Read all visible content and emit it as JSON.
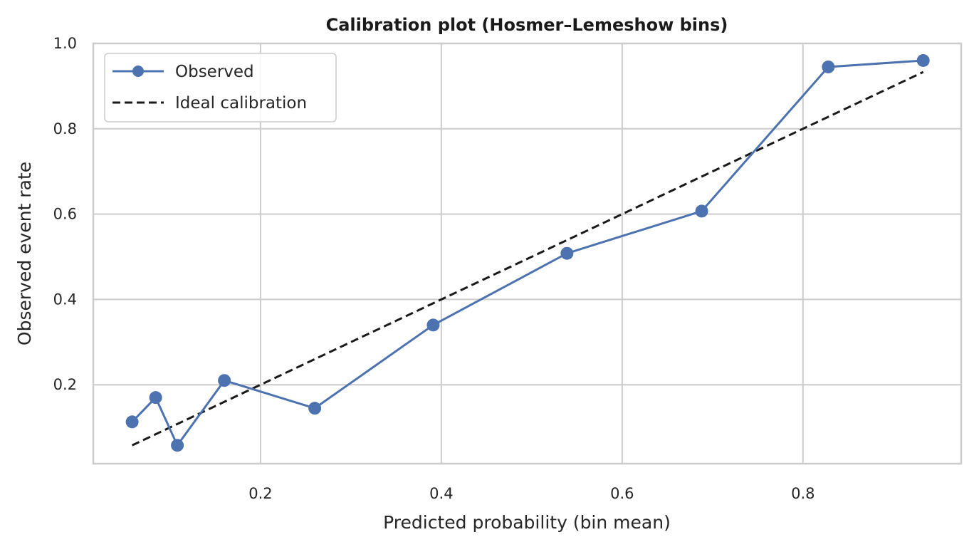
{
  "chart_data": {
    "type": "line",
    "title": "Calibration plot (Hosmer–Lemeshow bins)",
    "xlabel": "Predicted probability (bin mean)",
    "ylabel": "Observed event rate",
    "xlim": [
      0.015,
      0.975
    ],
    "ylim": [
      0.015,
      1.0
    ],
    "x_ticks": [
      0.2,
      0.4,
      0.6,
      0.8
    ],
    "y_ticks": [
      0.2,
      0.4,
      0.6,
      0.8,
      1.0
    ],
    "x_tick_labels": [
      "0.2",
      "0.4",
      "0.6",
      "0.8"
    ],
    "y_tick_labels": [
      "0.2",
      "0.4",
      "0.6",
      "0.8",
      "1.0"
    ],
    "grid": true,
    "legend_position": "top-left",
    "series": [
      {
        "name": "Observed",
        "style": "solid-with-markers",
        "color": "#4c72b0",
        "x": [
          0.058,
          0.084,
          0.108,
          0.16,
          0.26,
          0.391,
          0.539,
          0.688,
          0.828,
          0.933
        ],
        "y": [
          0.113,
          0.17,
          0.058,
          0.21,
          0.145,
          0.34,
          0.508,
          0.607,
          0.945,
          0.96
        ]
      },
      {
        "name": "Ideal calibration",
        "style": "dashed",
        "color": "#1a1a1a",
        "x": [
          0.058,
          0.933
        ],
        "y": [
          0.058,
          0.933
        ]
      }
    ]
  }
}
